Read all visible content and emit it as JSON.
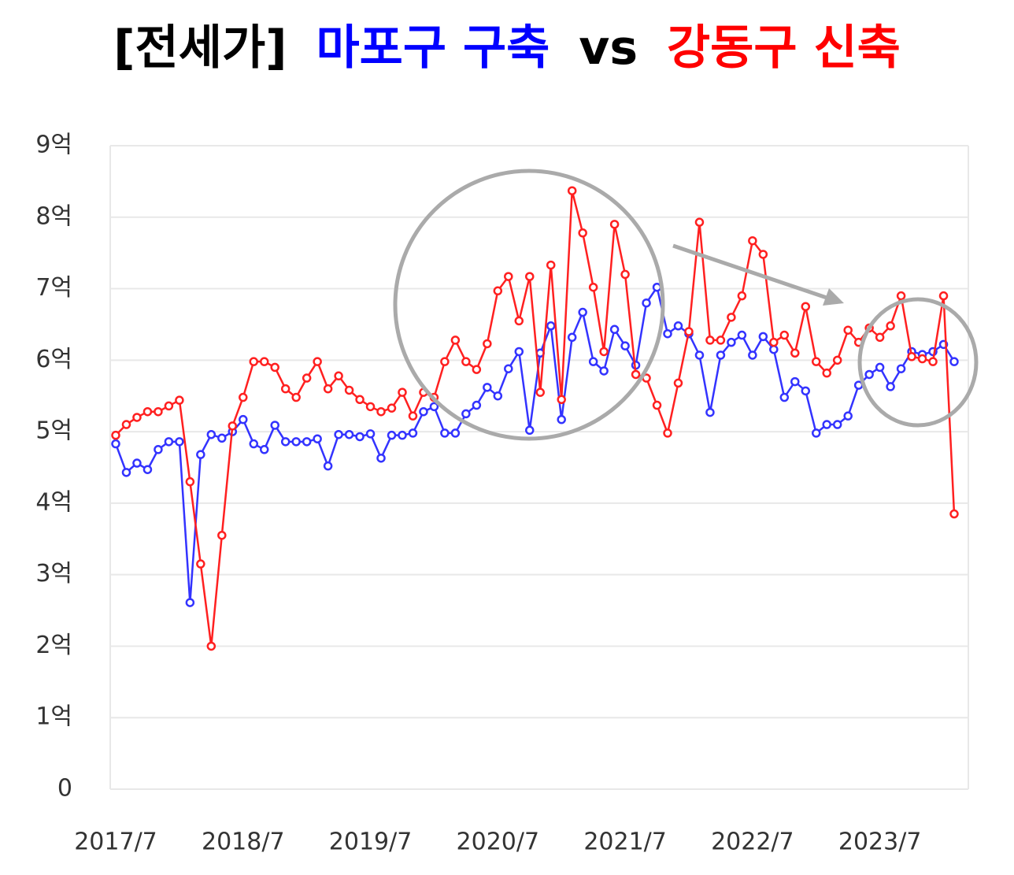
{
  "chart_data": {
    "type": "line",
    "title": "[전세가]",
    "title_connector": "vs",
    "categories": [
      "2017/7",
      null,
      null,
      null,
      null,
      null,
      null,
      null,
      null,
      null,
      null,
      null,
      "2018/7",
      null,
      null,
      null,
      null,
      null,
      null,
      null,
      null,
      null,
      null,
      null,
      "2019/7",
      null,
      null,
      null,
      null,
      null,
      null,
      null,
      null,
      null,
      null,
      null,
      "2020/7",
      null,
      null,
      null,
      null,
      null,
      null,
      null,
      null,
      null,
      null,
      null,
      "2021/7",
      null,
      null,
      null,
      null,
      null,
      null,
      null,
      null,
      null,
      null,
      null,
      "2022/7",
      null,
      null,
      null,
      null,
      null,
      null,
      null,
      null,
      null,
      null,
      null,
      "2023/7",
      null,
      null,
      null,
      null,
      null,
      null,
      null
    ],
    "series": [
      {
        "name": "마포구 구축",
        "color": "#3333ff",
        "values": [
          4.83,
          4.43,
          4.56,
          4.47,
          4.75,
          4.86,
          4.86,
          2.61,
          4.68,
          4.96,
          4.91,
          5.0,
          5.17,
          4.83,
          4.75,
          5.09,
          4.86,
          4.86,
          4.86,
          4.9,
          4.52,
          4.96,
          4.96,
          4.93,
          4.97,
          4.63,
          4.95,
          4.95,
          4.98,
          5.28,
          5.35,
          4.98,
          4.98,
          5.25,
          5.37,
          5.62,
          5.5,
          5.88,
          6.12,
          5.02,
          6.1,
          6.48,
          5.17,
          6.32,
          6.67,
          5.98,
          5.85,
          6.43,
          6.2,
          5.93,
          6.8,
          7.02,
          6.37,
          6.48,
          6.37,
          6.07,
          5.27,
          6.07,
          6.25,
          6.35,
          6.07,
          6.33,
          6.15,
          5.48,
          5.7,
          5.57,
          4.98,
          5.1,
          5.1,
          5.22,
          5.65,
          5.8,
          5.9,
          5.63,
          5.88,
          6.12,
          6.08,
          6.12,
          6.22,
          5.98
        ]
      },
      {
        "name": "강동구 신축",
        "color": "#ff2020",
        "values": [
          4.95,
          5.1,
          5.2,
          5.28,
          5.28,
          5.36,
          5.44,
          4.3,
          3.15,
          2.0,
          3.55,
          5.08,
          5.48,
          5.98,
          5.98,
          5.9,
          5.6,
          5.48,
          5.75,
          5.98,
          5.6,
          5.78,
          5.58,
          5.45,
          5.35,
          5.28,
          5.33,
          5.55,
          5.22,
          5.55,
          5.48,
          5.98,
          6.28,
          5.98,
          5.87,
          6.23,
          6.97,
          7.17,
          6.55,
          7.17,
          5.55,
          7.33,
          5.45,
          8.37,
          7.78,
          7.02,
          6.12,
          7.9,
          7.2,
          5.8,
          5.75,
          5.37,
          4.98,
          5.68,
          6.4,
          7.93,
          6.28,
          6.28,
          6.6,
          6.9,
          7.67,
          7.48,
          6.25,
          6.35,
          6.1,
          6.75,
          5.98,
          5.82,
          6.0,
          6.42,
          6.25,
          6.45,
          6.32,
          6.48,
          6.9,
          6.05,
          6.02,
          5.98,
          6.9,
          3.85
        ]
      }
    ],
    "ylim": [
      0,
      9
    ],
    "yticks": [
      0,
      {
        "value": 1,
        "label": "1억"
      },
      {
        "value": 2,
        "label": "2억"
      },
      {
        "value": 3,
        "label": "3억"
      },
      {
        "value": 4,
        "label": "4억"
      },
      {
        "value": 5,
        "label": "5억"
      },
      {
        "value": 6,
        "label": "6억"
      },
      {
        "value": 7,
        "label": "7억"
      },
      {
        "value": 8,
        "label": "8억"
      },
      {
        "value": 9,
        "label": "9억"
      }
    ],
    "grid": true
  }
}
